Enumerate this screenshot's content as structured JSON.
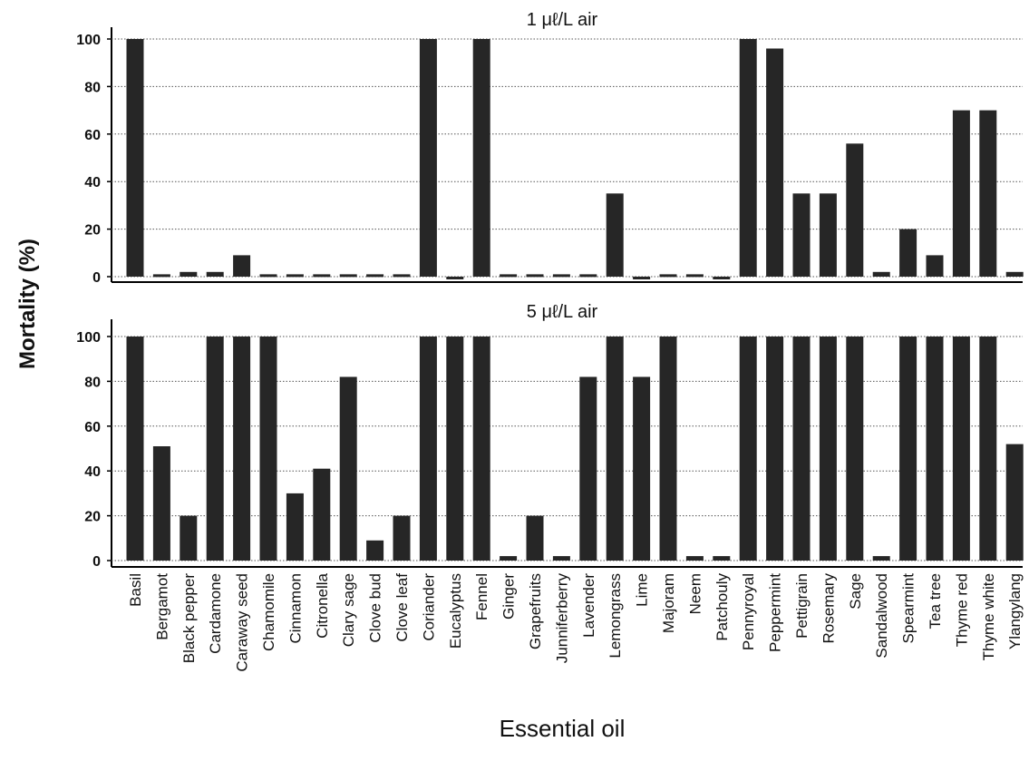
{
  "colors": {
    "bar": "#262626",
    "axis": "#000000",
    "grid": "#555555",
    "background": "#ffffff"
  },
  "ylabel": "Mortality (%)",
  "xlabel": "Essential oil",
  "chart_data": [
    {
      "type": "bar",
      "title": "1 μℓ/L air",
      "xlabel": "Essential oil",
      "ylabel": "Mortality (%)",
      "ylim": [
        -2,
        101
      ],
      "yticks": [
        0,
        20,
        40,
        60,
        80,
        100
      ],
      "grid": true,
      "categories": [
        "Basil",
        "Bergamot",
        "Black pepper",
        "Cardamone",
        "Caraway seed",
        "Chamomile",
        "Cinnamon",
        "Citronella",
        "Clary sage",
        "Clove bud",
        "Clove leaf",
        "Coriander",
        "Eucalyptus",
        "Fennel",
        "Ginger",
        "Grapefruits",
        "Junniferberry",
        "Lavender",
        "Lemongrass",
        "Lime",
        "Majoram",
        "Neem",
        "Patchouly",
        "Pennyroyal",
        "Peppermint",
        "Pettigrain",
        "Rosemary",
        "Sage",
        "Sandalwood",
        "Spearmint",
        "Tea tree",
        "Thyme red",
        "Thyme white",
        "Ylangylang"
      ],
      "values": [
        100,
        1,
        2,
        2,
        9,
        1,
        1,
        1,
        1,
        1,
        1,
        100,
        0,
        100,
        1,
        1,
        1,
        1,
        35,
        -1,
        1,
        1,
        0,
        100,
        96,
        35,
        35,
        56,
        2,
        20,
        9,
        70,
        70,
        2
      ]
    },
    {
      "type": "bar",
      "title": "5 μℓ/L air",
      "xlabel": "Essential oil",
      "ylabel": "Mortality (%)",
      "ylim": [
        -2,
        107
      ],
      "yticks": [
        0,
        20,
        40,
        60,
        80,
        100
      ],
      "grid": true,
      "categories": [
        "Basil",
        "Bergamot",
        "Black pepper",
        "Cardamone",
        "Caraway seed",
        "Chamomile",
        "Cinnamon",
        "Citronella",
        "Clary sage",
        "Clove bud",
        "Clove leaf",
        "Coriander",
        "Eucalyptus",
        "Fennel",
        "Ginger",
        "Grapefruits",
        "Junniferberry",
        "Lavender",
        "Lemongrass",
        "Lime",
        "Majoram",
        "Neem",
        "Patchouly",
        "Pennyroyal",
        "Peppermint",
        "Pettigrain",
        "Rosemary",
        "Sage",
        "Sandalwood",
        "Spearmint",
        "Tea tree",
        "Thyme red",
        "Thyme white",
        "Ylangylang"
      ],
      "values": [
        100,
        51,
        20,
        100,
        100,
        100,
        30,
        41,
        82,
        9,
        20,
        100,
        100,
        100,
        2,
        20,
        2,
        82,
        100,
        82,
        100,
        2,
        2,
        100,
        100,
        100,
        100,
        100,
        2,
        100,
        100,
        100,
        100,
        52
      ]
    }
  ]
}
